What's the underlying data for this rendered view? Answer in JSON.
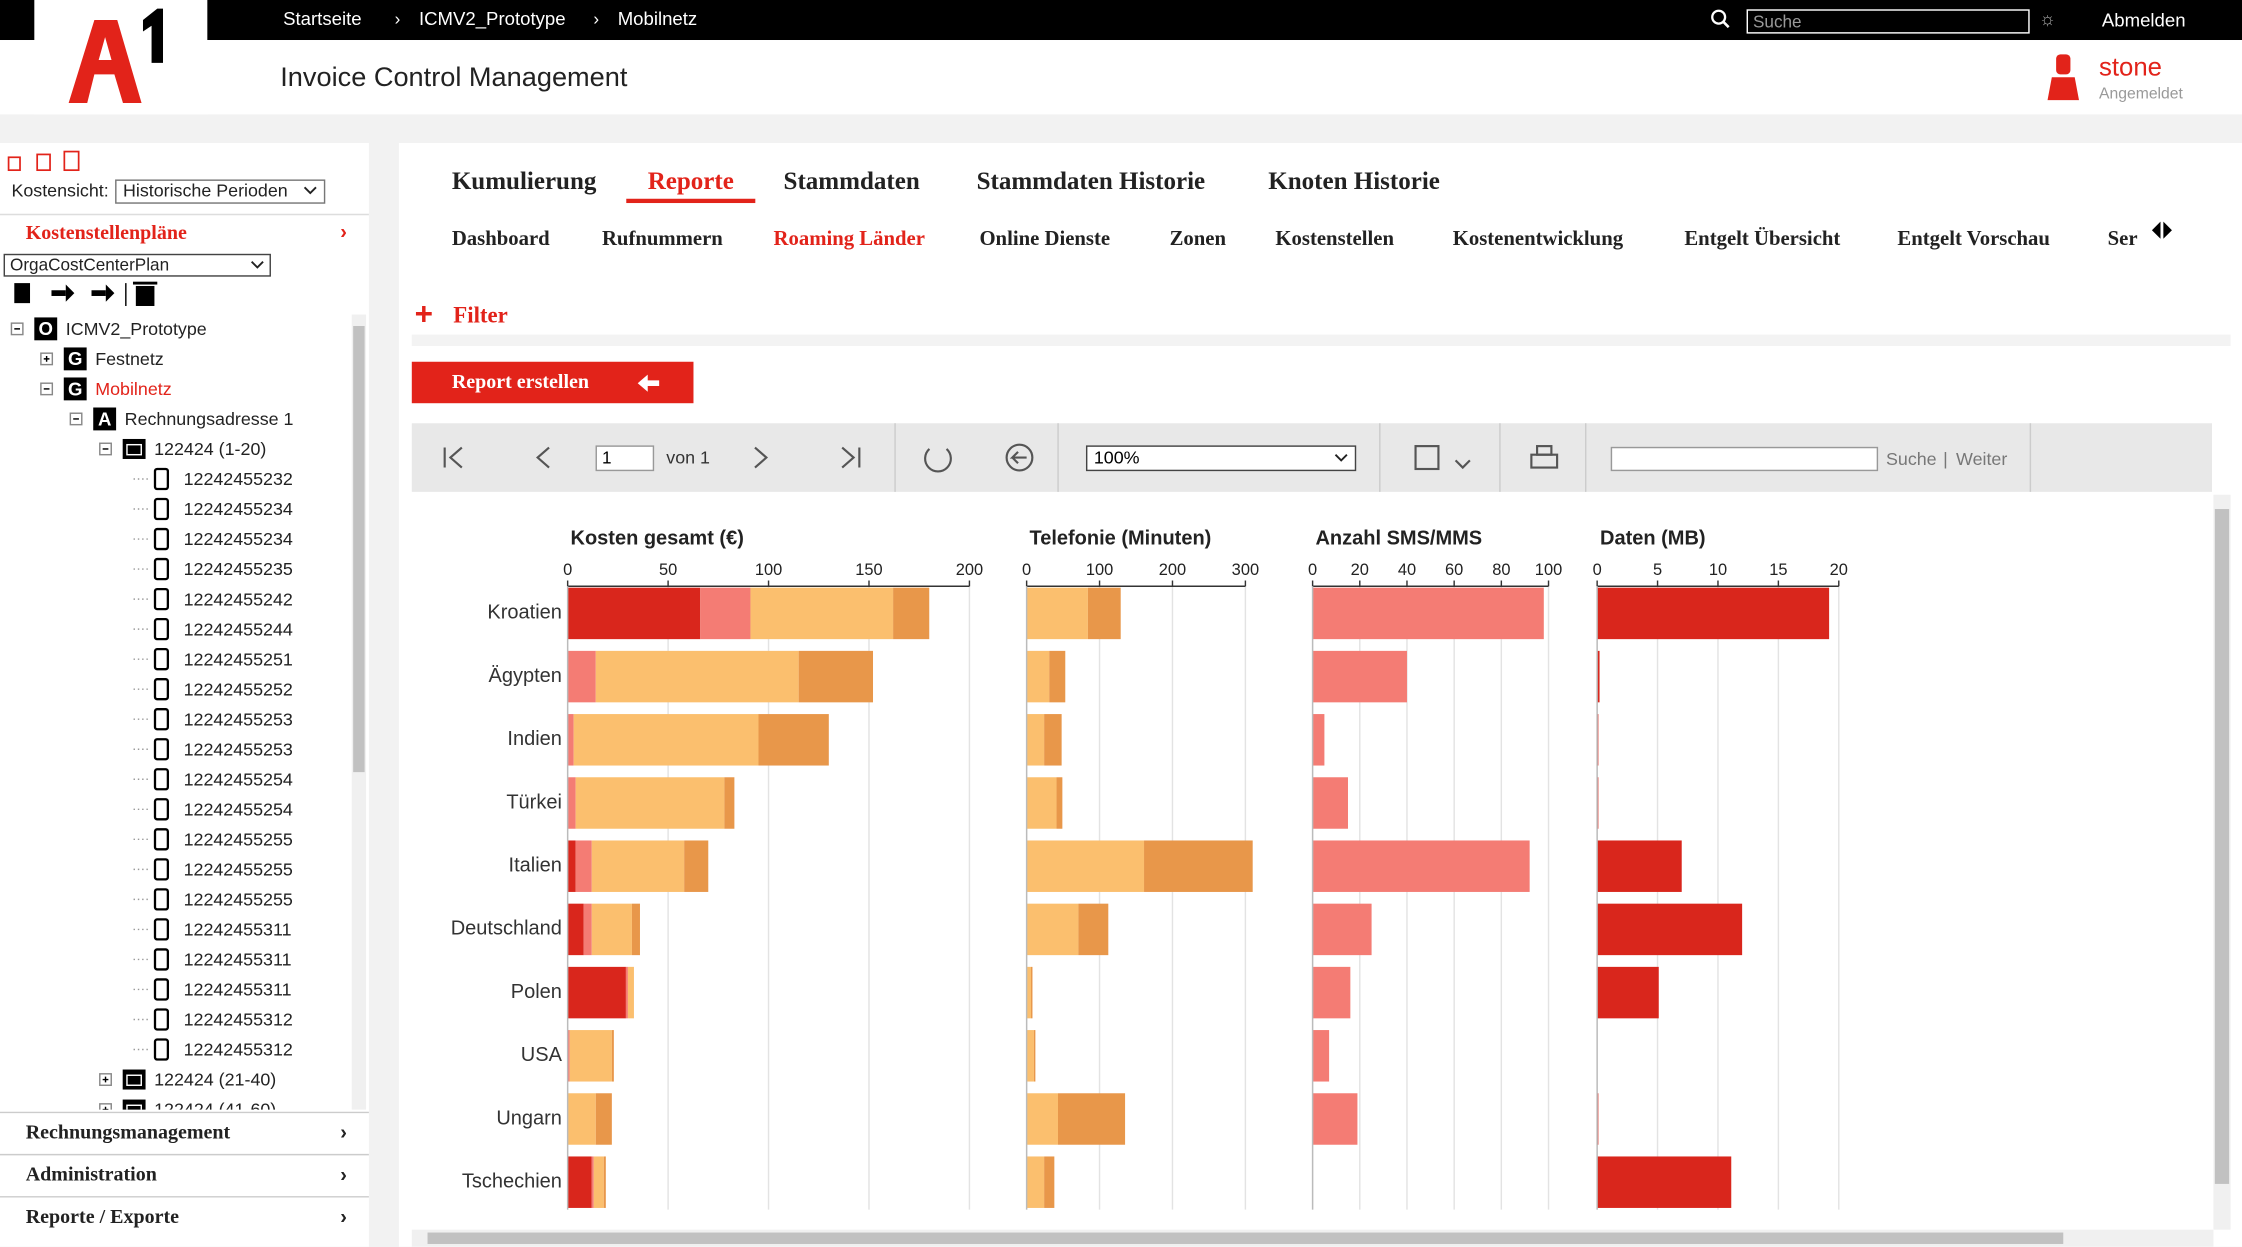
{
  "breadcrumb": [
    "Startseite",
    "ICMV2_Prototype",
    "Mobilnetz"
  ],
  "search_placeholder": "Suche",
  "logout": "Abmelden",
  "app_title": "Invoice Control Management",
  "user": {
    "name": "stone",
    "status": "Angemeldet"
  },
  "sidebar": {
    "kostensicht_label": "Kostensicht:",
    "kostensicht_value": "Historische Perioden",
    "section": "Kostenstellenpläne",
    "plan": "OrgaCostCenterPlan",
    "selected": 2,
    "tree": [
      {
        "label": "ICMV2_Prototype",
        "level": 0,
        "icon": "O"
      },
      {
        "label": "Festnetz",
        "level": 1,
        "icon": "G"
      },
      {
        "label": "Mobilnetz",
        "level": 1,
        "icon": "G"
      },
      {
        "label": "Rechnungsadresse 1",
        "level": 2,
        "icon": "A"
      },
      {
        "label": "122424 (1-20)",
        "level": 3,
        "icon": "folder"
      },
      {
        "label": "12242455232",
        "level": 4,
        "icon": "phone"
      },
      {
        "label": "12242455234",
        "level": 4,
        "icon": "phone"
      },
      {
        "label": "12242455234",
        "level": 4,
        "icon": "phone"
      },
      {
        "label": "12242455235",
        "level": 4,
        "icon": "phone"
      },
      {
        "label": "12242455242",
        "level": 4,
        "icon": "phone"
      },
      {
        "label": "12242455244",
        "level": 4,
        "icon": "phone"
      },
      {
        "label": "12242455251",
        "level": 4,
        "icon": "phone"
      },
      {
        "label": "12242455252",
        "level": 4,
        "icon": "phone"
      },
      {
        "label": "12242455253",
        "level": 4,
        "icon": "phone"
      },
      {
        "label": "12242455253",
        "level": 4,
        "icon": "phone"
      },
      {
        "label": "12242455254",
        "level": 4,
        "icon": "phone"
      },
      {
        "label": "12242455254",
        "level": 4,
        "icon": "phone"
      },
      {
        "label": "12242455255",
        "level": 4,
        "icon": "phone"
      },
      {
        "label": "12242455255",
        "level": 4,
        "icon": "phone"
      },
      {
        "label": "12242455255",
        "level": 4,
        "icon": "phone"
      },
      {
        "label": "12242455311",
        "level": 4,
        "icon": "phone"
      },
      {
        "label": "12242455311",
        "level": 4,
        "icon": "phone"
      },
      {
        "label": "12242455311",
        "level": 4,
        "icon": "phone"
      },
      {
        "label": "12242455312",
        "level": 4,
        "icon": "phone"
      },
      {
        "label": "12242455312",
        "level": 4,
        "icon": "phone"
      },
      {
        "label": "122424 (21-40)",
        "level": 3,
        "icon": "folder"
      },
      {
        "label": "122424 (41-60)",
        "level": 3,
        "icon": "folder"
      }
    ],
    "menu": [
      "Rechnungsmanagement",
      "Administration",
      "Reporte / Exporte"
    ]
  },
  "tabs": [
    "Kumulierung",
    "Reporte",
    "Stammdaten",
    "Stammdaten Historie",
    "Knoten Historie"
  ],
  "active_tab": 1,
  "subtabs": [
    "Dashboard",
    "Rufnummern",
    "Roaming Länder",
    "Online Dienste",
    "Zonen",
    "Kostenstellen",
    "Kostenentwicklung",
    "Entgelt Übersicht",
    "Entgelt Vorschau",
    "Ser"
  ],
  "active_subtab": 2,
  "filter": "Filter",
  "report_button": "Report erstellen",
  "toolbar": {
    "page": "1",
    "of": "von 1",
    "zoom": "100%",
    "search": "Suche",
    "next": "Weiter"
  },
  "chart_data": [
    {
      "type": "bar",
      "orientation": "horizontal",
      "stacked": true,
      "title": "Kosten gesamt (€)",
      "grid": true,
      "categories": [
        "Kroatien",
        "Ägypten",
        "Indien",
        "Türkei",
        "Italien",
        "Deutschland",
        "Polen",
        "USA",
        "Ungarn",
        "Tschechien"
      ],
      "xlim": [
        0,
        200
      ],
      "xticks": [
        0,
        50,
        100,
        150,
        200
      ],
      "series": [
        {
          "color": "#d9261c",
          "values": [
            66,
            0,
            0,
            0,
            4,
            8,
            29,
            0,
            0,
            12
          ]
        },
        {
          "color": "#f47c74",
          "values": [
            25,
            14,
            3,
            4,
            8,
            4,
            1,
            1,
            0,
            1
          ]
        },
        {
          "color": "#fbbf6e",
          "values": [
            71,
            101,
            92,
            74,
            46,
            20,
            3,
            21,
            14,
            5
          ]
        },
        {
          "color": "#e8974a",
          "values": [
            18,
            37,
            35,
            5,
            12,
            4,
            0,
            1,
            8,
            1
          ]
        }
      ]
    },
    {
      "type": "bar",
      "orientation": "horizontal",
      "stacked": true,
      "title": "Telefonie (Minuten)",
      "grid": true,
      "xlim": [
        0,
        300
      ],
      "xticks": [
        0,
        100,
        200,
        300
      ],
      "series": [
        {
          "color": "#fbbf6e",
          "values": [
            84,
            31,
            24,
            41,
            161,
            71,
            6,
            10,
            43,
            24
          ]
        },
        {
          "color": "#e8974a",
          "values": [
            45,
            22,
            24,
            8,
            149,
            41,
            2,
            2,
            92,
            14
          ]
        }
      ]
    },
    {
      "type": "bar",
      "orientation": "horizontal",
      "stacked": true,
      "title": "Anzahl SMS/MMS",
      "grid": true,
      "xlim": [
        0,
        100
      ],
      "xticks": [
        0,
        20,
        40,
        60,
        80,
        100
      ],
      "series": [
        {
          "color": "#f47c74",
          "values": [
            98,
            40,
            5,
            15,
            92,
            25,
            16,
            7,
            19,
            0
          ]
        }
      ]
    },
    {
      "type": "bar",
      "orientation": "horizontal",
      "stacked": true,
      "title": "Daten (MB)",
      "grid": true,
      "xlim": [
        0,
        20
      ],
      "xticks": [
        0,
        5,
        10,
        15,
        20
      ],
      "series": [
        {
          "color": "#d9261c",
          "values": [
            19.2,
            0.2,
            0.1,
            0.1,
            7,
            12,
            5.1,
            0,
            0.1,
            11.1
          ]
        }
      ]
    }
  ]
}
